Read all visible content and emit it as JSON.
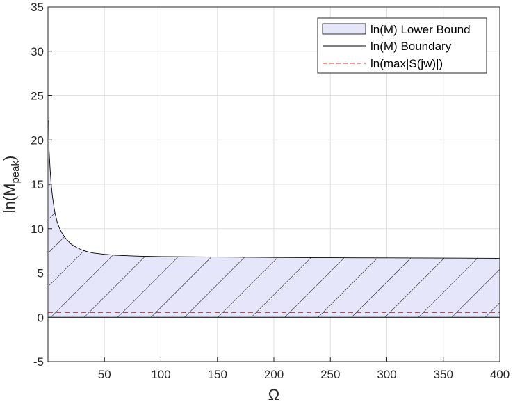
{
  "chart_data": {
    "type": "area",
    "xlabel": "Ω",
    "ylabel_main": "ln(M",
    "ylabel_sub": "peak",
    "ylabel_close": ")",
    "xlim": [
      0,
      400
    ],
    "ylim": [
      -5,
      35
    ],
    "xticks": [
      50,
      100,
      150,
      200,
      250,
      300,
      350,
      400
    ],
    "yticks": [
      -5,
      0,
      5,
      10,
      15,
      20,
      25,
      30,
      35
    ],
    "grid": true,
    "legend_position": "top-right",
    "series": [
      {
        "name": "ln(M) Lower Bound",
        "style": "filled-hatched",
        "fill_color": "#e6e6fa",
        "x": [
          0.7,
          1,
          2,
          3,
          4,
          5,
          6,
          8,
          10,
          12,
          15,
          18,
          20,
          25,
          30,
          35,
          40,
          50,
          60,
          70,
          80,
          100,
          150,
          200,
          250,
          300,
          350,
          400
        ],
        "y": [
          22.2,
          18.8,
          16.5,
          14.8,
          13.6,
          12.7,
          11.9,
          10.8,
          10.1,
          9.6,
          9.0,
          8.6,
          8.3,
          7.9,
          7.6,
          7.4,
          7.25,
          7.1,
          7.0,
          6.95,
          6.9,
          6.85,
          6.8,
          6.75,
          6.72,
          6.7,
          6.68,
          6.65
        ]
      },
      {
        "name": "ln(M) Boundary",
        "style": "solid",
        "color": "#000000"
      },
      {
        "name": "ln(max|S(jw)|)",
        "style": "dashed",
        "color": "#d62728",
        "y_constant": 0.55
      }
    ],
    "lower_bound_baseline": 0
  }
}
